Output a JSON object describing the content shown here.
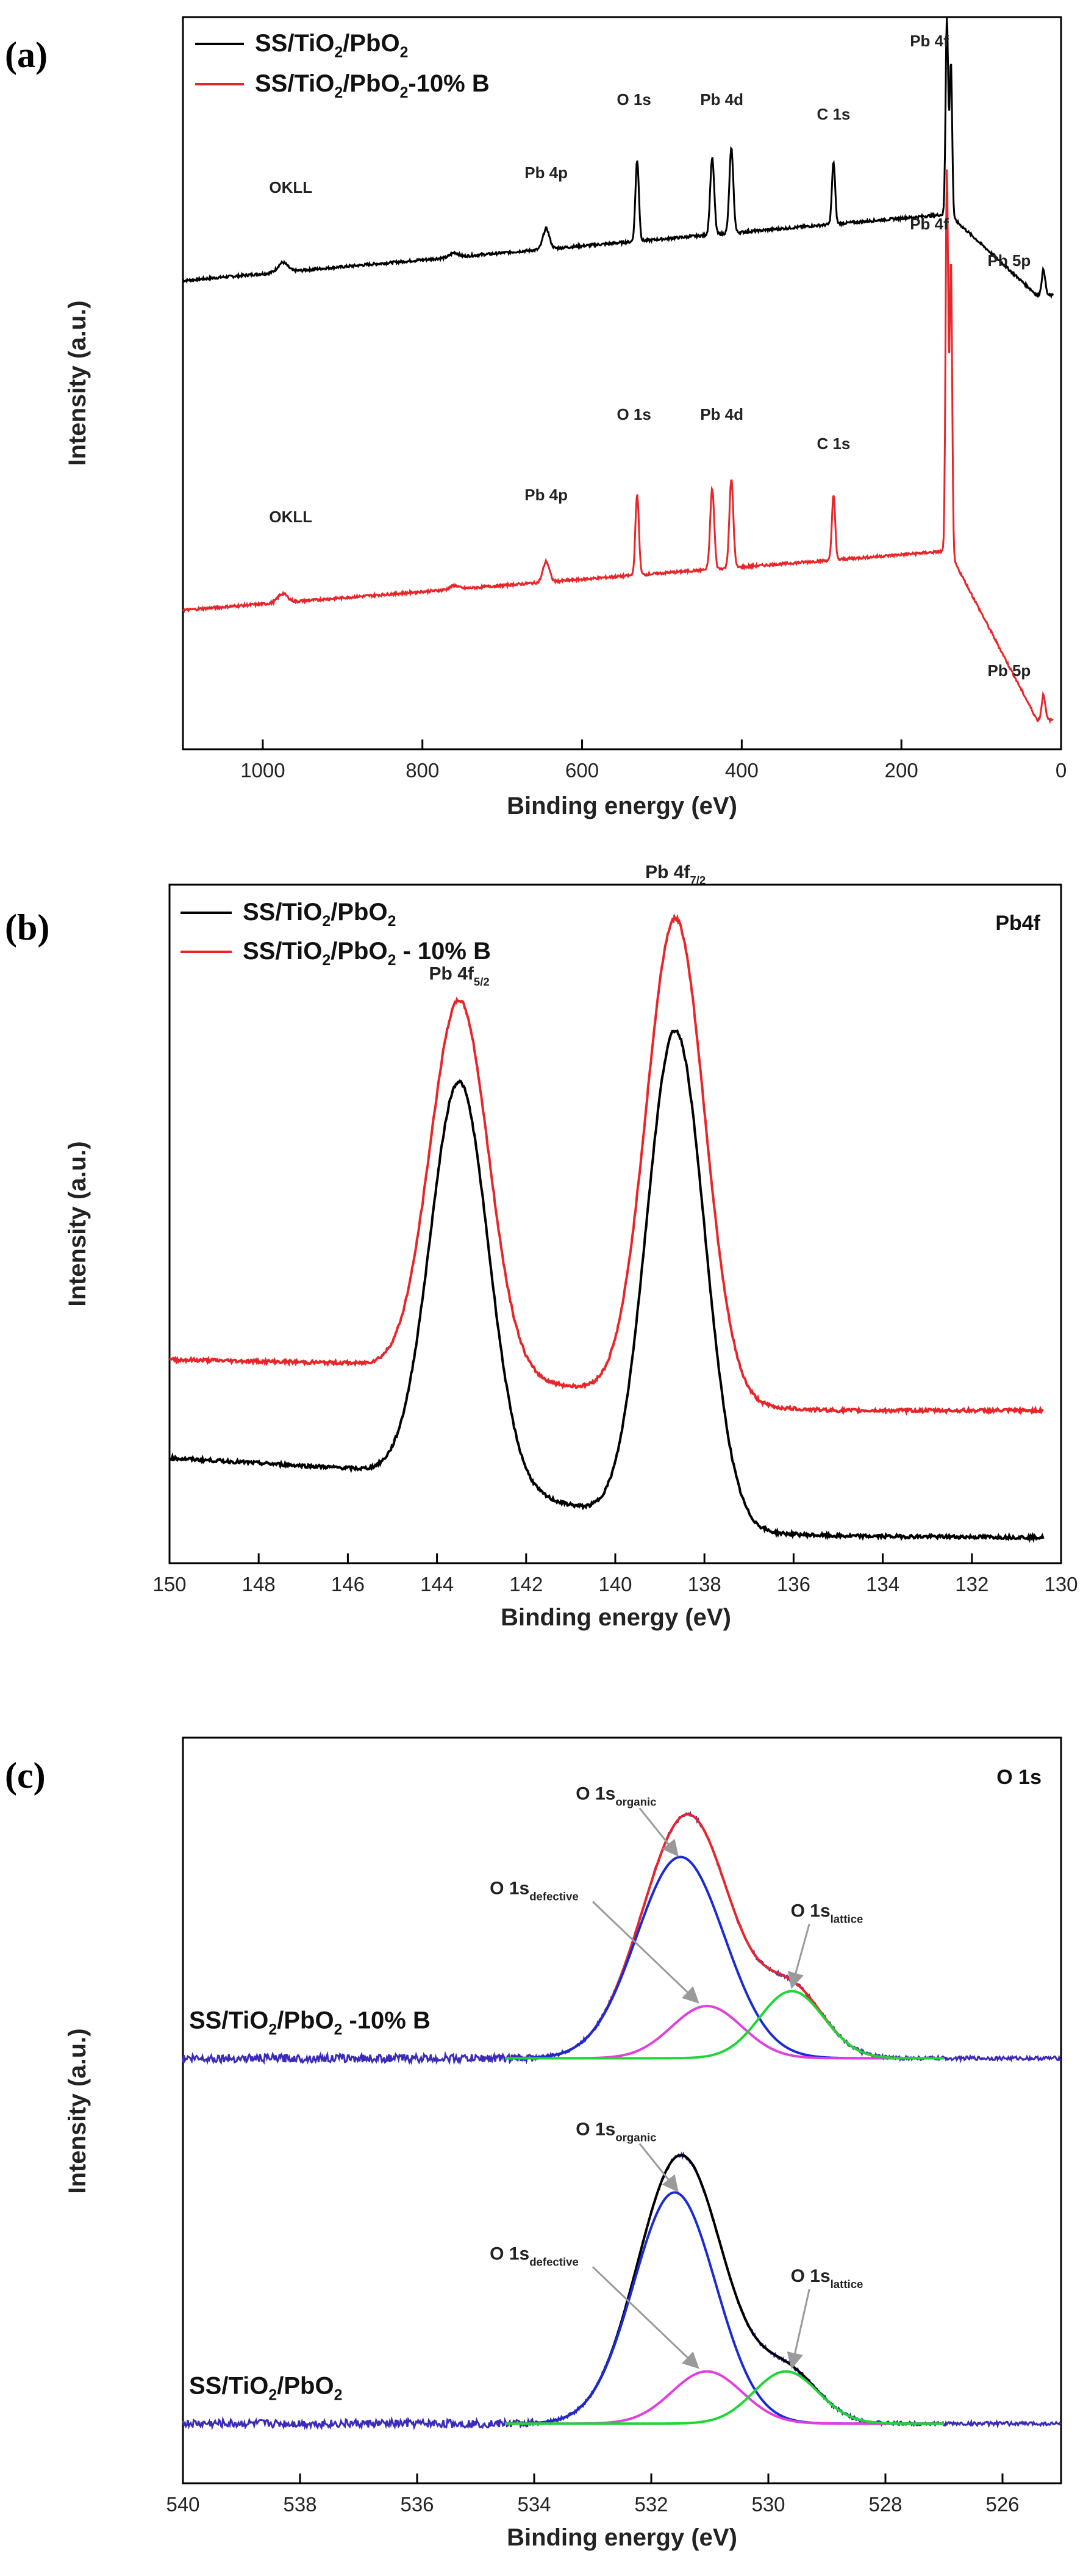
{
  "colors": {
    "black_series": "#000000",
    "red_series": "#e8262a",
    "blue_component": "#1a2bd6",
    "magenta_component": "#e23ee0",
    "green_component": "#1ed636",
    "baseline_noise": "#3b2bb8",
    "arrow": "#9a9a9a"
  },
  "chart_data": [
    {
      "panel": "(a)",
      "type": "line",
      "title": "",
      "xlabel": "Binding energy (eV)",
      "ylabel": "Intensity (a.u.)",
      "xlim": [
        1100,
        0
      ],
      "ylim": [
        0,
        100
      ],
      "x_reversed": true,
      "grid": false,
      "legend_position": "top-left",
      "xticks": [
        1000,
        800,
        600,
        400,
        200,
        0
      ],
      "series": [
        {
          "name": "SS/TiO₂/PbO₂",
          "label_parts": [
            "SS/TiO",
            "2",
            "/PbO",
            "2",
            ""
          ],
          "color": "#000000",
          "baseline_start": 64,
          "baseline_end": 73,
          "x_end": 10,
          "end_value": 62,
          "peaks": [
            {
              "x": 975,
              "height": 1.3,
              "width": 6
            },
            {
              "x": 760,
              "height": 0.6,
              "width": 5
            },
            {
              "x": 645,
              "height": 2.8,
              "width": 4
            },
            {
              "x": 531,
              "height": 11,
              "width": 2.2
            },
            {
              "x": 437,
              "height": 10.5,
              "width": 2.5
            },
            {
              "x": 413,
              "height": 11.5,
              "width": 2.5
            },
            {
              "x": 285,
              "height": 8.5,
              "width": 2
            },
            {
              "x": 143,
              "height": 27,
              "width": 1.6
            },
            {
              "x": 138,
              "height": 21,
              "width": 1.6
            },
            {
              "x": 22,
              "height": 3.5,
              "width": 2.2
            }
          ],
          "annotations": [
            {
              "text": "OKLL",
              "x": 965,
              "y": 76
            },
            {
              "text": "Pb 4p",
              "x": 645,
              "y": 78
            },
            {
              "text": "O 1s",
              "x": 535,
              "y": 88
            },
            {
              "text": "Pb 4d",
              "x": 425,
              "y": 88
            },
            {
              "text": "C 1s",
              "x": 285,
              "y": 86
            },
            {
              "text": "Pb 4f",
              "x": 165,
              "y": 96
            },
            {
              "text": "Pb 5p",
              "x": 65,
              "y": 66
            }
          ]
        },
        {
          "name": "SS/TiO₂/PbO₂-10% B",
          "label_parts": [
            "SS/TiO",
            "2",
            "/PbO",
            "2",
            "-10% B"
          ],
          "color": "#e8262a",
          "baseline_start": 19,
          "baseline_end": 27,
          "x_end": 10,
          "end_value": 4,
          "peaks": [
            {
              "x": 975,
              "height": 1.2,
              "width": 6
            },
            {
              "x": 760,
              "height": 0.5,
              "width": 5
            },
            {
              "x": 645,
              "height": 2.8,
              "width": 4
            },
            {
              "x": 531,
              "height": 11,
              "width": 2.2
            },
            {
              "x": 437,
              "height": 11,
              "width": 2.5
            },
            {
              "x": 413,
              "height": 12,
              "width": 2.5
            },
            {
              "x": 285,
              "height": 9,
              "width": 2
            },
            {
              "x": 143,
              "height": 52,
              "width": 1.6
            },
            {
              "x": 138,
              "height": 40,
              "width": 1.6
            },
            {
              "x": 22,
              "height": 3.5,
              "width": 2.2
            }
          ],
          "annotations": [
            {
              "text": "OKLL",
              "x": 965,
              "y": 31
            },
            {
              "text": "Pb 4p",
              "x": 645,
              "y": 34
            },
            {
              "text": "O 1s",
              "x": 535,
              "y": 45
            },
            {
              "text": "Pb 4d",
              "x": 425,
              "y": 45
            },
            {
              "text": "C 1s",
              "x": 285,
              "y": 41
            },
            {
              "text": "Pb 4f",
              "x": 165,
              "y": 71
            },
            {
              "text": "Pb 5p",
              "x": 65,
              "y": 10
            }
          ]
        }
      ]
    },
    {
      "panel": "(b)",
      "type": "line",
      "title": "Pb4f",
      "xlabel": "Binding energy (eV)",
      "ylabel": "Intensity (a.u.)",
      "xlim": [
        150,
        130
      ],
      "ylim": [
        0,
        100
      ],
      "x_reversed": true,
      "grid": false,
      "legend_position": "top-left",
      "xticks": [
        150,
        148,
        146,
        144,
        142,
        140,
        138,
        136,
        134,
        132,
        130
      ],
      "series": [
        {
          "name": "SS/TiO₂/PbO₂",
          "label_parts": [
            "SS/TiO",
            "2",
            "/PbO",
            "2",
            ""
          ],
          "color": "#000000",
          "x_start": 150,
          "x_end": 130.4,
          "background": [
            [
              150,
              15.5
            ],
            [
              146,
              14
            ],
            [
              143.5,
              12
            ],
            [
              141,
              8.5
            ],
            [
              140,
              6.5
            ],
            [
              138.6,
              5.5
            ],
            [
              137,
              4.5
            ],
            [
              135,
              4
            ],
            [
              130.4,
              3.8
            ]
          ],
          "peaks": [
            {
              "x": 143.5,
              "height": 59,
              "width": 0.65
            },
            {
              "x": 138.65,
              "height": 73,
              "width": 0.65
            }
          ],
          "annotations": [
            {
              "text_parts": [
                "Pb 4f",
                "5/2"
              ],
              "x": 143.5,
              "y": 86
            }
          ]
        },
        {
          "name": "SS/TiO₂/PbO₂ - 10% B",
          "label_parts": [
            "SS/TiO",
            "2",
            "/PbO",
            "2",
            " - 10% B"
          ],
          "color": "#e8262a",
          "x_start": 150,
          "x_end": 130.4,
          "background": [
            [
              150,
              30
            ],
            [
              146,
              29.5
            ],
            [
              143.5,
              28
            ],
            [
              141,
              26
            ],
            [
              140,
              25
            ],
            [
              138.6,
              24
            ],
            [
              137,
              23
            ],
            [
              135,
              22.5
            ],
            [
              130.4,
              22.5
            ]
          ],
          "peaks": [
            {
              "x": 143.5,
              "height": 55,
              "width": 0.65
            },
            {
              "x": 138.65,
              "height": 71,
              "width": 0.65
            }
          ],
          "annotations": [
            {
              "text_parts": [
                "Pb 4f",
                "7/2"
              ],
              "x": 138.65,
              "y": 101
            }
          ]
        }
      ]
    },
    {
      "panel": "(c)",
      "type": "line",
      "title": "O 1s",
      "xlabel": "Binding energy (eV)",
      "ylabel": "Intensity (a.u.)",
      "xlim": [
        540,
        525
      ],
      "ylim": [
        0,
        100
      ],
      "x_reversed": true,
      "grid": false,
      "legend_position": "none",
      "xticks": [
        540,
        538,
        536,
        534,
        532,
        530,
        528,
        526
      ],
      "stacks": [
        {
          "label_parts": [
            "SS/TiO",
            "2",
            "/PbO",
            "2",
            " -10% B"
          ],
          "baseline": 57,
          "components": [
            {
              "name": "organic",
              "color": "#1a2bd6",
              "x": 531.5,
              "height": 27,
              "width": 0.75
            },
            {
              "name": "defective",
              "color": "#e23ee0",
              "x": 531.05,
              "height": 7,
              "width": 0.6
            },
            {
              "name": "lattice",
              "color": "#1ed636",
              "x": 529.6,
              "height": 9,
              "width": 0.55
            }
          ],
          "annotations": {
            "organic": [
              "O 1s",
              "organic"
            ],
            "defective": [
              "O 1s",
              "defective"
            ],
            "lattice": [
              "O 1s",
              "lattice"
            ]
          }
        },
        {
          "label_parts": [
            "SS/TiO",
            "2",
            "/PbO",
            "2",
            ""
          ],
          "baseline": 8,
          "components": [
            {
              "name": "organic",
              "color": "#1a2bd6",
              "x": 531.6,
              "height": 31,
              "width": 0.7
            },
            {
              "name": "defective",
              "color": "#e23ee0",
              "x": 531.05,
              "height": 7,
              "width": 0.6
            },
            {
              "name": "lattice",
              "color": "#1ed636",
              "x": 529.7,
              "height": 7,
              "width": 0.55
            }
          ],
          "annotations": {
            "organic": [
              "O 1s",
              "organic"
            ],
            "defective": [
              "O 1s",
              "defective"
            ],
            "lattice": [
              "O 1s",
              "lattice"
            ]
          }
        }
      ]
    }
  ]
}
